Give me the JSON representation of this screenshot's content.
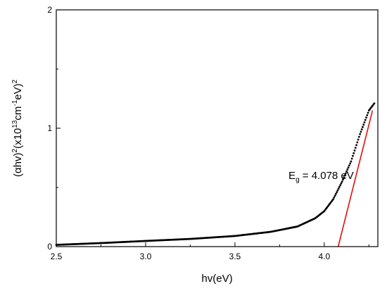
{
  "chart_data": {
    "type": "scatter",
    "xlabel": "hv(eV)",
    "ylabel": "(αhv)²(x10¹³cm⁻¹eV)²",
    "ylabel_parts": {
      "a": "(",
      "alpha": "α",
      "b": "hv)",
      "sup1": "2",
      "c": "(x10",
      "sup2": "13",
      "d": "cm",
      "sup3": "-1",
      "e": "eV)",
      "sup4": "2"
    },
    "xlim": [
      2.5,
      4.3
    ],
    "ylim": [
      0,
      2
    ],
    "x_ticks": [
      2.5,
      3.0,
      3.5,
      4.0
    ],
    "x_tick_labels": [
      "2.5",
      "3.0",
      "3.5",
      "4.0"
    ],
    "y_ticks": [
      0,
      1,
      2
    ],
    "y_tick_labels": [
      "0",
      "1",
      "2"
    ],
    "annotation": {
      "label": "E",
      "sub": "g",
      "value_text": " = 4.078 eV",
      "at": [
        3.8,
        0.57
      ]
    },
    "series": [
      {
        "marker": "dot",
        "color": "#000000",
        "x_start": 2.5,
        "x_end": 4.28,
        "x_step": 0.005,
        "curve_points": [
          [
            2.5,
            0.015
          ],
          [
            2.75,
            0.03
          ],
          [
            3.0,
            0.048
          ],
          [
            3.25,
            0.065
          ],
          [
            3.5,
            0.09
          ],
          [
            3.7,
            0.125
          ],
          [
            3.85,
            0.17
          ],
          [
            3.95,
            0.24
          ],
          [
            4.0,
            0.3
          ],
          [
            4.05,
            0.4
          ],
          [
            4.1,
            0.55
          ],
          [
            4.15,
            0.72
          ],
          [
            4.2,
            0.95
          ],
          [
            4.25,
            1.15
          ],
          [
            4.3,
            1.25
          ]
        ]
      }
    ],
    "fit_line": {
      "color": "#e01010",
      "x1": 4.078,
      "y1": 0,
      "x2": 4.27,
      "y2": 1.15
    }
  }
}
